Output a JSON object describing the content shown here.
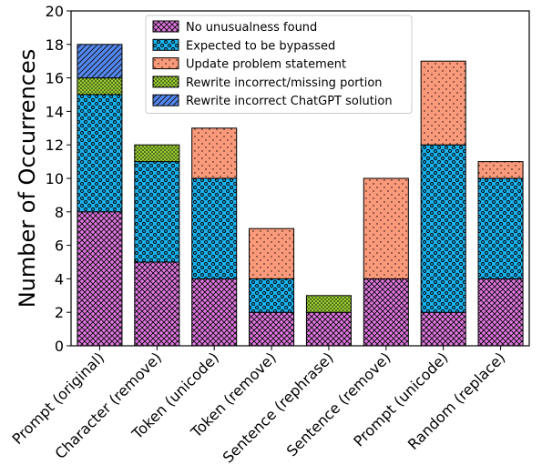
{
  "chart_data": {
    "type": "bar",
    "stacked": true,
    "ylabel": "Number of Occurrences",
    "xlabel": "",
    "title": "",
    "ylim": [
      0,
      20
    ],
    "yticks": [
      0,
      2,
      4,
      6,
      8,
      10,
      12,
      14,
      16,
      18,
      20
    ],
    "grid": false,
    "legend_position": "top-center",
    "categories": [
      "Prompt (original)",
      "Character (remove)",
      "Token (unicode)",
      "Token (remove)",
      "Sentence (rephrase)",
      "Sentence (remove)",
      "Prompt (unicode)",
      "Random (replace)"
    ],
    "series": [
      {
        "name": "No unusualness found",
        "color": "#dd77dd",
        "pattern": "crosshatch",
        "values": [
          8,
          5,
          4,
          2,
          2,
          4,
          2,
          4
        ]
      },
      {
        "name": "Expected to be bypassed",
        "color": "#1ab2ee",
        "pattern": "circles",
        "values": [
          7,
          6,
          6,
          2,
          0,
          0,
          10,
          6
        ]
      },
      {
        "name": "Update problem statement",
        "color": "#fa9a7a",
        "pattern": "dots",
        "values": [
          0,
          0,
          3,
          3,
          0,
          6,
          5,
          1
        ]
      },
      {
        "name": "Rewrite incorrect/missing portion",
        "color": "#99cc33",
        "pattern": "dense-dots",
        "values": [
          1,
          1,
          0,
          0,
          1,
          0,
          0,
          0
        ]
      },
      {
        "name": "Rewrite incorrect ChatGPT solution",
        "color": "#5588ee",
        "pattern": "diagonal",
        "values": [
          2,
          0,
          0,
          0,
          0,
          0,
          0,
          0
        ]
      }
    ]
  }
}
